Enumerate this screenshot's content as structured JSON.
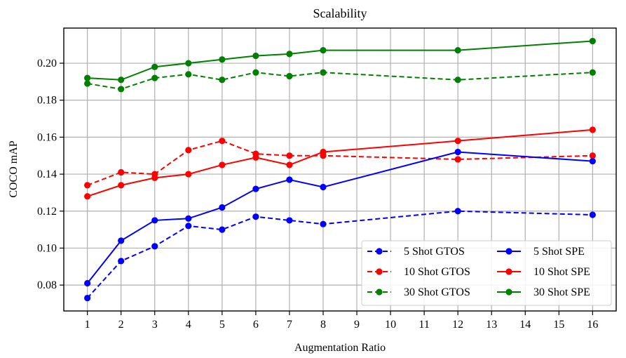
{
  "chart_data": {
    "type": "line",
    "title": "Scalability",
    "xlabel": "Augmentation Ratio",
    "ylabel": "COCO mAP",
    "xlim": [
      0.3,
      16.7
    ],
    "ylim": [
      0.066,
      0.219
    ],
    "xticks": [
      1,
      2,
      3,
      4,
      5,
      6,
      7,
      8,
      9,
      10,
      11,
      12,
      13,
      14,
      15,
      16
    ],
    "xtick_labels": [
      "1",
      "2",
      "3",
      "4",
      "5",
      "6",
      "7",
      "8",
      "9",
      "10",
      "11",
      "12",
      "13",
      "14",
      "15",
      "16"
    ],
    "yticks": [
      0.08,
      0.1,
      0.12,
      0.14,
      0.16,
      0.18,
      0.2
    ],
    "ytick_labels": [
      "0.08",
      "0.10",
      "0.12",
      "0.14",
      "0.16",
      "0.18",
      "0.20"
    ],
    "grid": true,
    "legend_position": "lower-right",
    "series": [
      {
        "name": "5 Shot GTOS",
        "color": "#0000ff",
        "dashed": true,
        "x": [
          1,
          2,
          3,
          4,
          5,
          6,
          7,
          8,
          12,
          16
        ],
        "y": [
          0.073,
          0.093,
          0.101,
          0.112,
          0.11,
          0.117,
          0.115,
          0.113,
          0.12,
          0.118
        ]
      },
      {
        "name": "10 Shot GTOS",
        "color": "#ff0000",
        "dashed": true,
        "x": [
          1,
          2,
          3,
          4,
          5,
          6,
          7,
          8,
          12,
          16
        ],
        "y": [
          0.134,
          0.141,
          0.14,
          0.153,
          0.158,
          0.151,
          0.15,
          0.15,
          0.148,
          0.15
        ]
      },
      {
        "name": "30 Shot GTOS",
        "color": "#008000",
        "dashed": true,
        "x": [
          1,
          2,
          3,
          4,
          5,
          6,
          7,
          8,
          12,
          16
        ],
        "y": [
          0.189,
          0.186,
          0.192,
          0.194,
          0.191,
          0.195,
          0.193,
          0.195,
          0.191,
          0.195
        ]
      },
      {
        "name": "5 Shot SPE",
        "color": "#0000ff",
        "dashed": false,
        "x": [
          1,
          2,
          3,
          4,
          5,
          6,
          7,
          8,
          12,
          16
        ],
        "y": [
          0.081,
          0.104,
          0.115,
          0.116,
          0.122,
          0.132,
          0.137,
          0.133,
          0.152,
          0.147
        ]
      },
      {
        "name": "10 Shot SPE",
        "color": "#ff0000",
        "dashed": false,
        "x": [
          1,
          2,
          3,
          4,
          5,
          6,
          7,
          8,
          12,
          16
        ],
        "y": [
          0.128,
          0.134,
          0.138,
          0.14,
          0.145,
          0.149,
          0.145,
          0.152,
          0.158,
          0.164
        ]
      },
      {
        "name": "30 Shot SPE",
        "color": "#008000",
        "dashed": false,
        "x": [
          1,
          2,
          3,
          4,
          5,
          6,
          7,
          8,
          12,
          16
        ],
        "y": [
          0.192,
          0.191,
          0.198,
          0.2,
          0.202,
          0.204,
          0.205,
          0.207,
          0.207,
          0.212
        ]
      }
    ]
  }
}
